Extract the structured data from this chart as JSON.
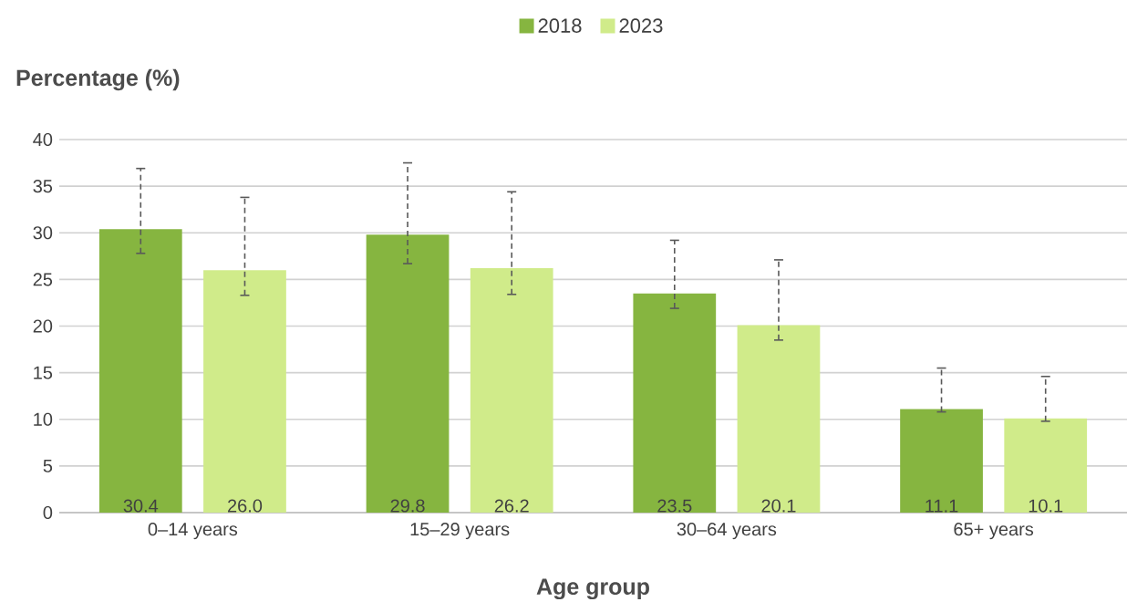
{
  "chart_data": {
    "type": "bar",
    "xlabel": "Age group",
    "ylabel": "Percentage (%)",
    "categories": [
      "0–14 years",
      "15–29 years",
      "30–64 years",
      "65+ years"
    ],
    "series": [
      {
        "name": "2018",
        "color": "#86b540",
        "values": [
          30.4,
          29.8,
          23.5,
          11.1
        ],
        "value_labels": [
          "30.4",
          "29.8",
          "23.5",
          "11.1"
        ],
        "errors": [
          [
            27.8,
            36.9
          ],
          [
            26.7,
            37.5
          ],
          [
            21.9,
            29.2
          ],
          [
            10.8,
            15.5
          ]
        ]
      },
      {
        "name": "2023",
        "color": "#d0eb8a",
        "values": [
          26.0,
          26.2,
          20.1,
          10.1
        ],
        "value_labels": [
          "26.0",
          "26.2",
          "20.1",
          "10.1"
        ],
        "errors": [
          [
            23.3,
            33.8
          ],
          [
            23.4,
            34.4
          ],
          [
            18.5,
            27.1
          ],
          [
            9.8,
            14.6
          ]
        ]
      }
    ],
    "ylim": [
      0,
      40
    ],
    "yticks": [
      0,
      5,
      10,
      15,
      20,
      25,
      30,
      35,
      40
    ],
    "grid": "y",
    "legend": "top"
  }
}
